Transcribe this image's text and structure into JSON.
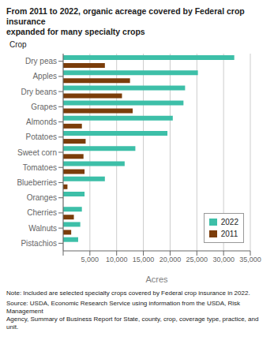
{
  "chart_data": {
    "type": "bar",
    "orientation": "horizontal",
    "title": "From 2011 to 2022, organic acreage covered by Federal crop insurance\nexpanded for many specialty crops",
    "xlabel": "Acres",
    "ylabel": "Crop",
    "categories": [
      "Pistachios",
      "Walnuts",
      "Cherries",
      "Oranges",
      "Blueberries",
      "Tomatoes",
      "Sweet corn",
      "Potatoes",
      "Almonds",
      "Grapes",
      "Dry beans",
      "Apples",
      "Dry peas"
    ],
    "series": [
      {
        "name": "2022",
        "color": "#3dbfa8",
        "values": [
          2800,
          3200,
          3500,
          4000,
          7800,
          11500,
          13500,
          19500,
          20500,
          22500,
          22800,
          25200,
          32000
        ]
      },
      {
        "name": "2011",
        "color": "#7b3d0a",
        "values": [
          0,
          1500,
          2000,
          0,
          800,
          4000,
          3800,
          4200,
          3500,
          13000,
          11000,
          12500,
          7800
        ]
      }
    ],
    "xlim": [
      0,
      35000
    ],
    "xticks": [
      {
        "value": 0,
        "label": ""
      },
      {
        "value": 5000,
        "label": "5,000"
      },
      {
        "value": 10000,
        "label": "10,000"
      },
      {
        "value": 15000,
        "label": "15,000"
      },
      {
        "value": 20000,
        "label": "20,000"
      },
      {
        "value": 25000,
        "label": "25,000"
      },
      {
        "value": 30000,
        "label": "30,000"
      },
      {
        "value": 35000,
        "label": "35,000"
      }
    ],
    "grid": true,
    "legend": "lower right",
    "annotations": [
      "Note: Included are selected specialty crops covered by Federal crop insurance in 2022.",
      "Source: USDA, Economic Research Service using information from the USDA, Risk Management",
      "Agency, Summary of Business Report for State, county, crop, coverage type, practice, and unit."
    ]
  }
}
